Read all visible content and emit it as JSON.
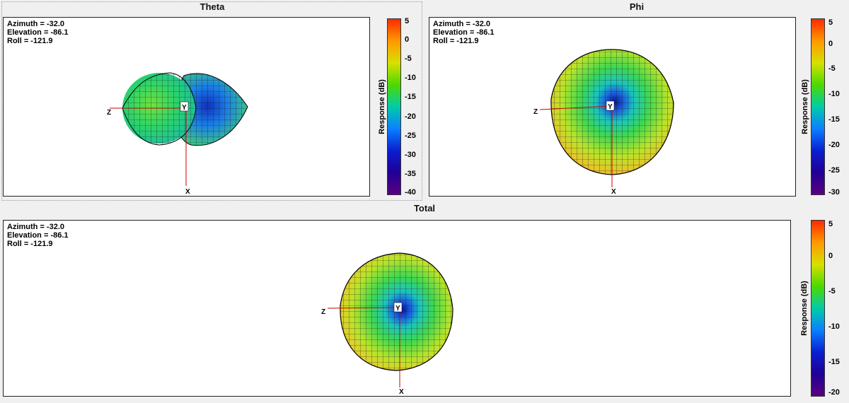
{
  "panels": {
    "theta": {
      "title": "Theta",
      "info": {
        "azimuth": "Azimuth = -32.0",
        "elevation": "Elevation = -86.1",
        "roll": "Roll = -121.9"
      },
      "axes": {
        "z": "Z",
        "y": "Y",
        "x": "X"
      },
      "colorbar": {
        "label": "Response  (dB)",
        "ticks": [
          "5",
          "0",
          "-5",
          "-10",
          "-15",
          "-20",
          "-25",
          "-30",
          "-35",
          "-40"
        ]
      }
    },
    "phi": {
      "title": "Phi",
      "info": {
        "azimuth": "Azimuth = -32.0",
        "elevation": "Elevation = -86.1",
        "roll": "Roll = -121.9"
      },
      "axes": {
        "z": "Z",
        "y": "Y",
        "x": "X"
      },
      "colorbar": {
        "label": "Response  (dB)",
        "ticks": [
          "5",
          "0",
          "-5",
          "-10",
          "-15",
          "-20",
          "-25",
          "-30"
        ]
      }
    },
    "total": {
      "title": "Total",
      "info": {
        "azimuth": "Azimuth = -32.0",
        "elevation": "Elevation = -86.1",
        "roll": "Roll = -121.9"
      },
      "axes": {
        "z": "Z",
        "y": "Y",
        "x": "X"
      },
      "colorbar": {
        "label": "Response  (dB)",
        "ticks": [
          "5",
          "0",
          "-5",
          "-10",
          "-15",
          "-20"
        ]
      }
    }
  }
}
